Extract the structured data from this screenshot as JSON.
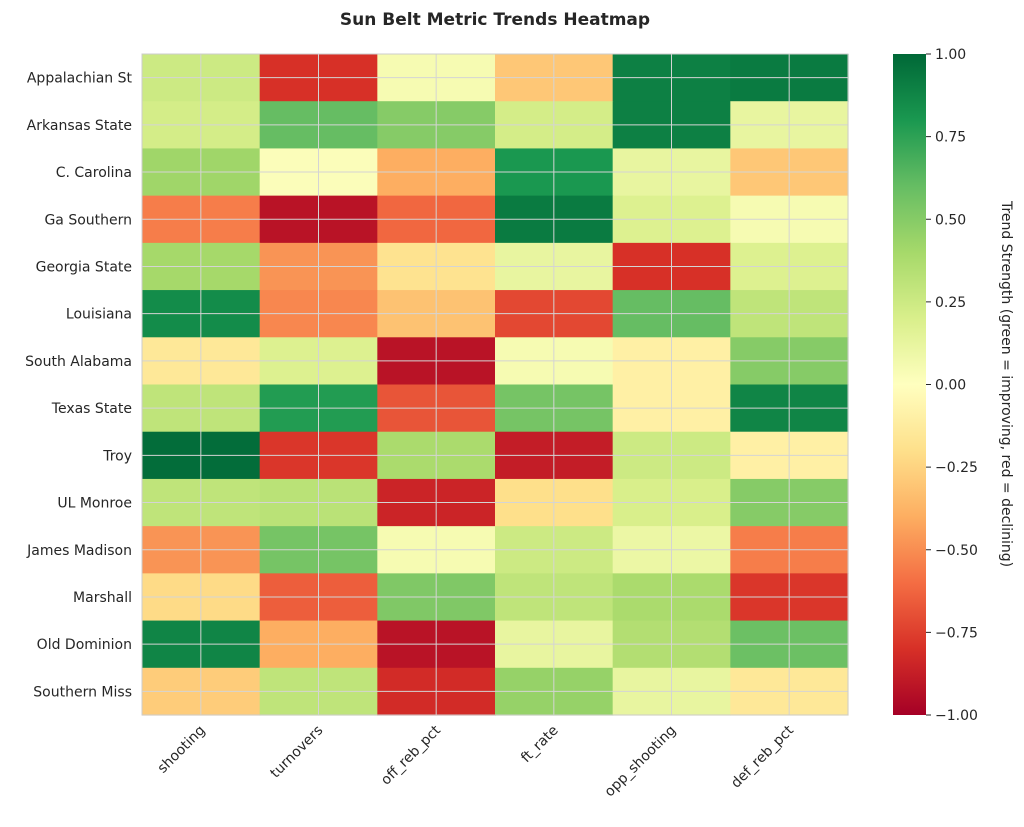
{
  "chart_data": {
    "type": "heatmap",
    "title": "Sun Belt Metric Trends Heatmap",
    "rows": [
      "Appalachian St",
      "Arkansas State",
      "C. Carolina",
      "Ga Southern",
      "Georgia State",
      "Louisiana",
      "South Alabama",
      "Texas State",
      "Troy",
      "UL Monroe",
      "James Madison",
      "Marshall",
      "Old Dominion",
      "Southern Miss"
    ],
    "columns": [
      "shooting",
      "turnovers",
      "off_reb_pct",
      "ft_rate",
      "opp_shooting",
      "def_reb_pct"
    ],
    "values": [
      [
        0.25,
        -0.8,
        0.05,
        -0.3,
        0.9,
        0.92
      ],
      [
        0.22,
        0.6,
        0.5,
        0.22,
        0.9,
        0.12
      ],
      [
        0.42,
        0.02,
        -0.4,
        0.8,
        0.12,
        -0.3
      ],
      [
        -0.55,
        -0.92,
        -0.62,
        0.92,
        0.18,
        0.05
      ],
      [
        0.4,
        -0.48,
        -0.18,
        0.12,
        -0.8,
        0.18
      ],
      [
        0.85,
        -0.52,
        -0.32,
        -0.72,
        0.6,
        0.3
      ],
      [
        -0.15,
        0.18,
        -0.92,
        0.05,
        -0.1,
        0.5
      ],
      [
        0.3,
        0.78,
        -0.68,
        0.55,
        -0.1,
        0.88
      ],
      [
        0.98,
        -0.78,
        0.38,
        -0.88,
        0.25,
        -0.1
      ],
      [
        0.3,
        0.32,
        -0.85,
        -0.2,
        0.2,
        0.5
      ],
      [
        -0.48,
        0.55,
        0.05,
        0.25,
        0.1,
        -0.55
      ],
      [
        -0.22,
        -0.65,
        0.52,
        0.3,
        0.38,
        -0.78
      ],
      [
        0.88,
        -0.4,
        -0.92,
        0.12,
        0.35,
        0.58
      ],
      [
        -0.28,
        0.3,
        -0.82,
        0.45,
        0.12,
        -0.15
      ]
    ],
    "colorbar": {
      "label": "Trend Strength (green = improving, red = declining)",
      "min": -1.0,
      "max": 1.0,
      "ticks": [
        "1.00",
        "0.75",
        "0.50",
        "0.25",
        "0.00",
        "−0.25",
        "−0.50",
        "−0.75",
        "−1.00"
      ],
      "tick_values": [
        1.0,
        0.75,
        0.5,
        0.25,
        0.0,
        -0.25,
        -0.5,
        -0.75,
        -1.0
      ],
      "colormap": "RdYlGn"
    },
    "grid": true
  }
}
